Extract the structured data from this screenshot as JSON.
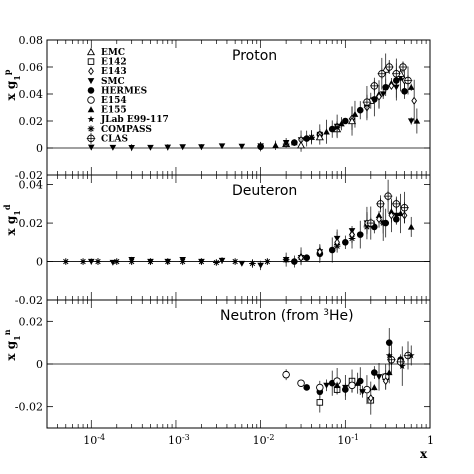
{
  "chart_data": {
    "type": "scatter",
    "x_scale": "log",
    "xlim": [
      3e-05,
      1
    ],
    "x_ticks": [
      {
        "value": 0.0001,
        "base": "10",
        "exp": "-4"
      },
      {
        "value": 0.001,
        "base": "10",
        "exp": "-3"
      },
      {
        "value": 0.01,
        "base": "10",
        "exp": "-2"
      },
      {
        "value": 0.1,
        "base": "10",
        "exp": "-1"
      },
      {
        "value": 1,
        "base": "1",
        "exp": ""
      }
    ],
    "xlabel": "x",
    "legend": {
      "placement": "top-left, proton panel",
      "entries": [
        {
          "label": "EMC",
          "marker": "triangle-open"
        },
        {
          "label": "E142",
          "marker": "square-open"
        },
        {
          "label": "E143",
          "marker": "diamond-open"
        },
        {
          "label": "SMC",
          "marker": "triangle-down-filled"
        },
        {
          "label": "HERMES",
          "marker": "circle-filled"
        },
        {
          "label": "E154",
          "marker": "circle-open"
        },
        {
          "label": "E155",
          "marker": "triangle-filled"
        },
        {
          "label": "JLab E99-117",
          "marker": "star"
        },
        {
          "label": "COMPASS",
          "marker": "asterisk"
        },
        {
          "label": "CLAS",
          "marker": "cross-circle"
        }
      ]
    },
    "panels": [
      {
        "title": "Proton",
        "ylabel": {
          "base": "x g",
          "sub": "1",
          "sup": "p"
        },
        "ylim": [
          -0.02,
          0.08
        ],
        "y_ticks": [
          "-0.02",
          "0",
          "0.02",
          "0.04",
          "0.06",
          "0.08"
        ],
        "series": [
          {
            "marker": "triangle-down-filled",
            "points": [
              [
                0.0001,
                0.0005
              ],
              [
                0.00018,
                0.0004
              ],
              [
                0.0003,
                0.0003
              ],
              [
                0.0005,
                0.0004
              ],
              [
                0.0008,
                0.0005
              ],
              [
                0.0012,
                0.0008
              ],
              [
                0.002,
                0.0008
              ],
              [
                0.0035,
                0.0015
              ],
              [
                0.006,
                0.0012
              ],
              [
                0.01,
                0.0015
              ],
              [
                0.02,
                0.004
              ],
              [
                0.03,
                0.006
              ],
              [
                0.05,
                0.01
              ],
              [
                0.08,
                0.016
              ],
              [
                0.12,
                0.02
              ],
              [
                0.18,
                0.03
              ],
              [
                0.28,
                0.04
              ],
              [
                0.4,
                0.045
              ],
              [
                0.6,
                0.02
              ]
            ]
          },
          {
            "marker": "circle-filled",
            "points": [
              [
                0.01,
                0.001
              ],
              [
                0.025,
                0.004
              ],
              [
                0.035,
                0.007
              ],
              [
                0.05,
                0.01
              ],
              [
                0.07,
                0.014
              ],
              [
                0.1,
                0.02
              ],
              [
                0.15,
                0.028
              ],
              [
                0.22,
                0.036
              ],
              [
                0.3,
                0.045
              ],
              [
                0.4,
                0.05
              ],
              [
                0.5,
                0.042
              ]
            ]
          },
          {
            "marker": "triangle-filled",
            "points": [
              [
                0.015,
                0.002
              ],
              [
                0.025,
                0.004
              ],
              [
                0.04,
                0.008
              ],
              [
                0.06,
                0.012
              ],
              [
                0.09,
                0.018
              ],
              [
                0.13,
                0.025
              ],
              [
                0.18,
                0.032
              ],
              [
                0.25,
                0.04
              ],
              [
                0.35,
                0.048
              ],
              [
                0.45,
                0.052
              ],
              [
                0.6,
                0.045
              ],
              [
                0.7,
                0.02
              ]
            ]
          },
          {
            "marker": "diamond-open",
            "points": [
              [
                0.03,
                0.006
              ],
              [
                0.05,
                0.01
              ],
              [
                0.08,
                0.016
              ],
              [
                0.12,
                0.022
              ],
              [
                0.18,
                0.03
              ],
              [
                0.25,
                0.038
              ],
              [
                0.35,
                0.046
              ],
              [
                0.5,
                0.05
              ],
              [
                0.65,
                0.035
              ]
            ]
          },
          {
            "marker": "triangle-open",
            "points": [
              [
                0.02,
                0.003
              ],
              [
                0.03,
                0.002
              ],
              [
                0.05,
                0.008
              ],
              [
                0.08,
                0.014
              ],
              [
                0.12,
                0.02
              ],
              [
                0.2,
                0.035
              ],
              [
                0.3,
                0.058
              ],
              [
                0.45,
                0.055
              ]
            ]
          },
          {
            "marker": "cross-circle",
            "points": [
              [
                0.18,
                0.034
              ],
              [
                0.22,
                0.046
              ],
              [
                0.27,
                0.055
              ],
              [
                0.33,
                0.06
              ],
              [
                0.4,
                0.055
              ],
              [
                0.48,
                0.06
              ],
              [
                0.55,
                0.05
              ]
            ]
          },
          {
            "marker": "asterisk",
            "points": [
              [
                0.01,
                0.0015
              ],
              [
                0.02,
                0.003
              ],
              [
                0.04,
                0.008
              ],
              [
                0.08,
                0.015
              ]
            ]
          }
        ]
      },
      {
        "title": "Deuteron",
        "ylabel": {
          "base": "x g",
          "sub": "1",
          "sup": "d"
        },
        "ylim": [
          -0.02,
          0.045
        ],
        "y_ticks": [
          "-0.02",
          "0",
          "0.02",
          "0.04"
        ],
        "series": [
          {
            "marker": "asterisk",
            "points": [
              [
                5e-05,
                0.0
              ],
              [
                8e-05,
                0.0
              ],
              [
                0.00012,
                0.0
              ],
              [
                0.0002,
                0.0
              ],
              [
                0.0003,
                0.0
              ],
              [
                0.0005,
                0.0
              ],
              [
                0.0008,
                0.0
              ],
              [
                0.0012,
                0.0
              ],
              [
                0.002,
                0.0
              ],
              [
                0.003,
                -0.0005
              ],
              [
                0.005,
                0.0
              ],
              [
                0.008,
                -0.001
              ],
              [
                0.012,
                0.0
              ],
              [
                0.02,
                0.001
              ],
              [
                0.03,
                0.002
              ],
              [
                0.05,
                0.004
              ],
              [
                0.08,
                0.008
              ],
              [
                0.12,
                0.012
              ],
              [
                0.18,
                0.018
              ],
              [
                0.28,
                0.02
              ]
            ]
          },
          {
            "marker": "triangle-down-filled",
            "points": [
              [
                0.0001,
                0.0
              ],
              [
                0.00018,
                -0.0005
              ],
              [
                0.0003,
                0.001
              ],
              [
                0.0005,
                0.0
              ],
              [
                0.0008,
                0.0
              ],
              [
                0.0012,
                0.001
              ],
              [
                0.002,
                0.0
              ],
              [
                0.0035,
                0.0005
              ],
              [
                0.006,
                -0.001
              ],
              [
                0.01,
                -0.002
              ],
              [
                0.02,
                0.001
              ],
              [
                0.03,
                0.002
              ],
              [
                0.05,
                0.005
              ],
              [
                0.08,
                0.012
              ],
              [
                0.12,
                0.016
              ],
              [
                0.18,
                0.02
              ],
              [
                0.28,
                0.02
              ],
              [
                0.4,
                0.024
              ]
            ]
          },
          {
            "marker": "circle-filled",
            "points": [
              [
                0.025,
                0.0
              ],
              [
                0.035,
                0.002
              ],
              [
                0.05,
                0.004
              ],
              [
                0.07,
                0.006
              ],
              [
                0.1,
                0.01
              ],
              [
                0.15,
                0.014
              ],
              [
                0.22,
                0.018
              ],
              [
                0.3,
                0.02
              ],
              [
                0.4,
                0.022
              ]
            ]
          },
          {
            "marker": "triangle-filled",
            "points": [
              [
                0.02,
                0.001
              ],
              [
                0.03,
                0.003
              ],
              [
                0.05,
                0.006
              ],
              [
                0.08,
                0.01
              ],
              [
                0.12,
                0.015
              ],
              [
                0.18,
                0.02
              ],
              [
                0.25,
                0.024
              ],
              [
                0.35,
                0.026
              ],
              [
                0.45,
                0.025
              ],
              [
                0.6,
                0.018
              ]
            ]
          },
          {
            "marker": "diamond-open",
            "points": [
              [
                0.03,
                0.002
              ],
              [
                0.05,
                0.005
              ],
              [
                0.08,
                0.01
              ],
              [
                0.12,
                0.014
              ],
              [
                0.18,
                0.02
              ],
              [
                0.25,
                0.022
              ],
              [
                0.35,
                0.024
              ],
              [
                0.5,
                0.024
              ]
            ]
          },
          {
            "marker": "cross-circle",
            "points": [
              [
                0.2,
                0.02
              ],
              [
                0.26,
                0.03
              ],
              [
                0.32,
                0.034
              ],
              [
                0.4,
                0.03
              ],
              [
                0.5,
                0.028
              ]
            ]
          }
        ]
      },
      {
        "title": "Neutron (from ",
        "title_sup": "3",
        "title_rest": "He)",
        "ylabel": {
          "base": "x g",
          "sub": "1",
          "sup": "n"
        },
        "ylim": [
          -0.03,
          0.03
        ],
        "y_ticks": [
          "-0.02",
          "0",
          "0.02"
        ],
        "series": [
          {
            "marker": "circle-filled",
            "points": [
              [
                0.035,
                -0.011
              ],
              [
                0.05,
                -0.013
              ],
              [
                0.07,
                -0.009
              ],
              [
                0.1,
                -0.012
              ],
              [
                0.15,
                -0.008
              ],
              [
                0.22,
                -0.004
              ],
              [
                0.33,
                0.01
              ],
              [
                0.45,
                0.002
              ]
            ]
          },
          {
            "marker": "square-open",
            "points": [
              [
                0.05,
                -0.018
              ],
              [
                0.08,
                -0.012
              ],
              [
                0.12,
                -0.008
              ],
              [
                0.2,
                -0.017
              ],
              [
                0.3,
                -0.006
              ]
            ]
          },
          {
            "marker": "circle-open",
            "points": [
              [
                0.02,
                -0.005
              ],
              [
                0.03,
                -0.009
              ],
              [
                0.05,
                -0.011
              ],
              [
                0.08,
                -0.008
              ],
              [
                0.12,
                -0.01
              ],
              [
                0.18,
                -0.012
              ],
              [
                0.3,
                -0.006
              ]
            ]
          },
          {
            "marker": "triangle-down-filled",
            "points": [
              [
                0.06,
                -0.01
              ],
              [
                0.1,
                -0.011
              ],
              [
                0.16,
                -0.013
              ],
              [
                0.25,
                -0.006
              ]
            ]
          },
          {
            "marker": "triangle-filled",
            "points": [
              [
                0.08,
                -0.01
              ],
              [
                0.14,
                -0.009
              ],
              [
                0.22,
                -0.011
              ],
              [
                0.33,
                -0.004
              ]
            ]
          },
          {
            "marker": "diamond-open",
            "points": [
              [
                0.2,
                -0.016
              ],
              [
                0.3,
                -0.008
              ]
            ]
          },
          {
            "marker": "cross-circle",
            "points": [
              [
                0.35,
                0.002
              ],
              [
                0.45,
                0.001
              ],
              [
                0.55,
                0.004
              ]
            ]
          },
          {
            "marker": "star",
            "points": [
              [
                0.33,
                0.004
              ],
              [
                0.47,
                -0.001
              ],
              [
                0.6,
                0.004
              ]
            ]
          }
        ]
      }
    ]
  }
}
